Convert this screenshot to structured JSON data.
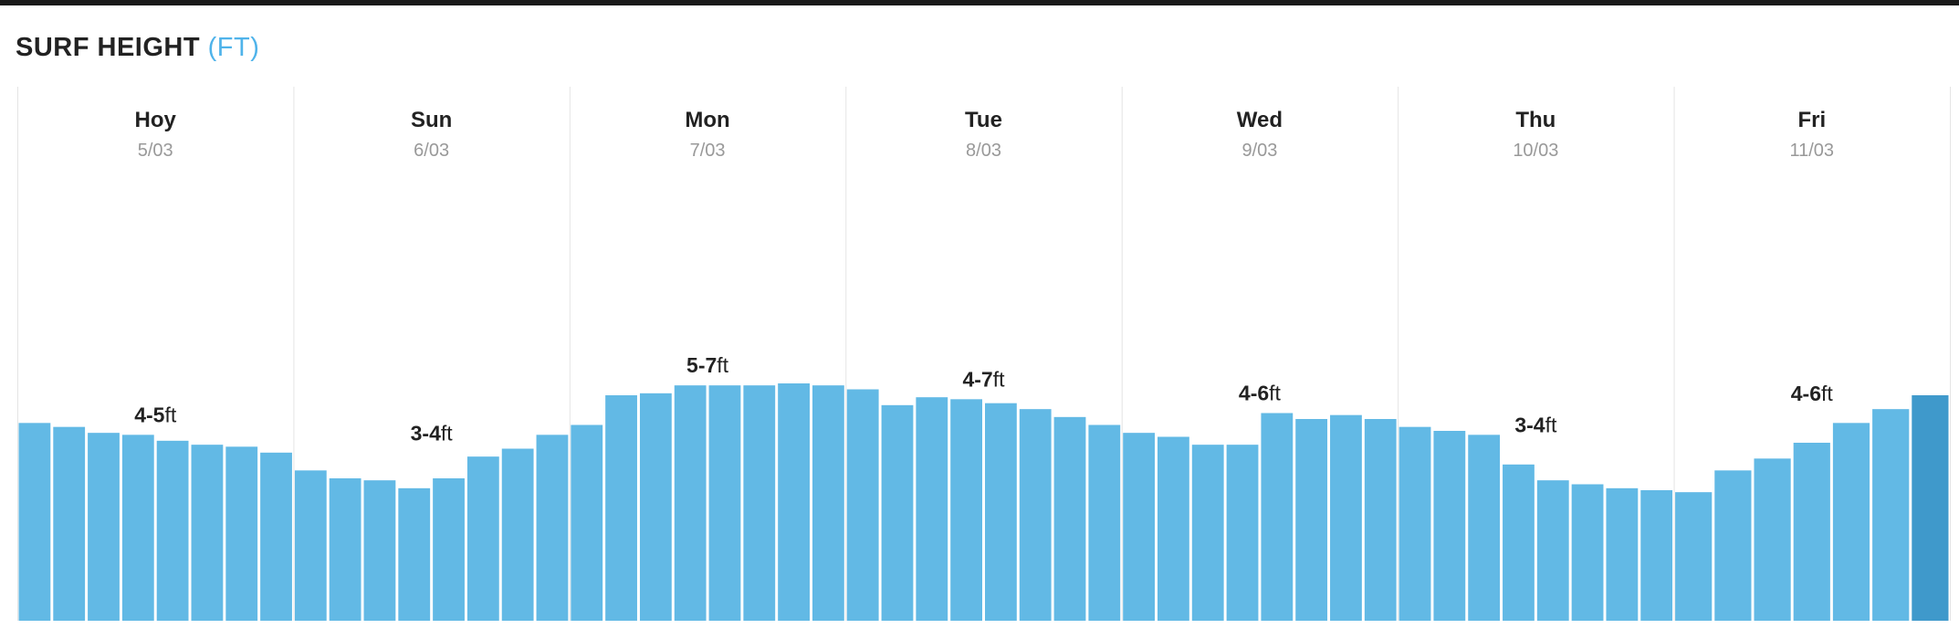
{
  "header": {
    "title": "SURF HEIGHT",
    "unit": "(FT)"
  },
  "colors": {
    "bar": "#62b9e5",
    "bar_selected": "#3f99cb",
    "unit_accent": "#4fb3ea",
    "divider": "#e4e4e4"
  },
  "chart_data": {
    "type": "bar",
    "title": "SURF HEIGHT (FT)",
    "unit": "ft",
    "days": [
      {
        "day": "Hoy",
        "date": "5/03",
        "range": "4-5",
        "unit": "ft"
      },
      {
        "day": "Sun",
        "date": "6/03",
        "range": "3-4",
        "unit": "ft"
      },
      {
        "day": "Mon",
        "date": "7/03",
        "range": "5-7",
        "unit": "ft"
      },
      {
        "day": "Tue",
        "date": "8/03",
        "range": "4-7",
        "unit": "ft"
      },
      {
        "day": "Wed",
        "date": "9/03",
        "range": "4-6",
        "unit": "ft"
      },
      {
        "day": "Thu",
        "date": "10/03",
        "range": "3-4",
        "unit": "ft"
      },
      {
        "day": "Fri",
        "date": "11/03",
        "range": "4-6",
        "unit": "ft"
      }
    ],
    "series": [
      {
        "values": [
          [
            5.0,
            4.9,
            4.75,
            4.7,
            4.55,
            4.45,
            4.4,
            4.25
          ],
          [
            3.8,
            3.6,
            3.55,
            3.35,
            3.6,
            4.15,
            4.35,
            4.7
          ],
          [
            4.95,
            5.7,
            5.75,
            5.95,
            5.95,
            5.95,
            6.0,
            5.95
          ],
          [
            5.85,
            5.45,
            5.65,
            5.6,
            5.5,
            5.35,
            5.15,
            4.95
          ],
          [
            4.75,
            4.65,
            4.45,
            4.45,
            5.25,
            5.1,
            5.2,
            5.1
          ],
          [
            4.9,
            4.8,
            4.7,
            3.95,
            3.55,
            3.45,
            3.35,
            3.3
          ],
          [
            3.25,
            3.8,
            4.1,
            4.5,
            5.0,
            5.35,
            5.7
          ]
        ]
      }
    ],
    "selected": {
      "day_index": 6,
      "bar_index": 6
    },
    "ylim": [
      0,
      13.5
    ],
    "grid": false
  }
}
